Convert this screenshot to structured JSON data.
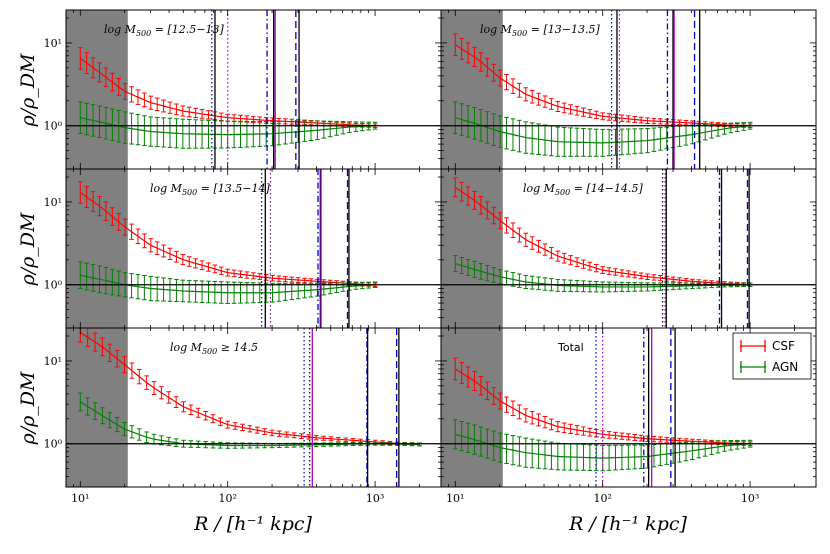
{
  "figure": {
    "ylabel_left": "ρ/ρ_DM",
    "xlabel": "R / [h⁻¹ kpc]"
  },
  "chart_data": {
    "type": "line",
    "x_scale": "log",
    "y_scale": "log",
    "xlim": [
      8,
      2800
    ],
    "ylim": [
      0.3,
      25
    ],
    "x_ticks": [
      {
        "value": 10,
        "label": "10¹"
      },
      {
        "value": 100,
        "label": "10²"
      },
      {
        "value": 1000,
        "label": "10³"
      }
    ],
    "y_ticks": [
      {
        "value": 1,
        "label": "10⁰"
      },
      {
        "value": 10,
        "label": "10¹"
      }
    ],
    "shaded_region": {
      "x_from": 8,
      "x_to": 21
    },
    "reference_line_y": 1,
    "colors": {
      "CSF": "#ff0000",
      "AGN": "#008000",
      "black": "#000000",
      "blue": "#0000cc",
      "purple": "#aa00cc"
    },
    "legend": {
      "position": "top-right",
      "panel": 5,
      "entries": [
        "CSF",
        "AGN"
      ]
    },
    "panels": [
      {
        "label": "log M_500 = [12.5−13]",
        "csf": {
          "x": [
            10,
            14,
            20,
            30,
            50,
            100,
            200,
            400,
            700,
            1000
          ],
          "y": [
            6.5,
            4.2,
            2.6,
            1.9,
            1.5,
            1.25,
            1.15,
            1.08,
            1.02,
            1.0
          ],
          "err": [
            1.35,
            1.3,
            1.25,
            1.2,
            1.15,
            1.1,
            1.08,
            1.06,
            1.05,
            1.05
          ]
        },
        "agn": {
          "x": [
            10,
            14,
            20,
            30,
            50,
            100,
            200,
            400,
            700,
            1000
          ],
          "y": [
            1.25,
            1.1,
            0.95,
            0.85,
            0.8,
            0.78,
            0.8,
            0.88,
            0.97,
            1.0
          ],
          "err": [
            1.55,
            1.55,
            1.55,
            1.5,
            1.5,
            1.45,
            1.4,
            1.3,
            1.15,
            1.1
          ]
        },
        "vlines": [
          {
            "x": 78,
            "color": "blue",
            "style": "dotted"
          },
          {
            "x": 82,
            "color": "black",
            "style": "solid"
          },
          {
            "x": 100,
            "color": "purple",
            "style": "dotted"
          },
          {
            "x": 185,
            "color": "blue",
            "style": "dashdot"
          },
          {
            "x": 205,
            "color": "black",
            "style": "solid"
          },
          {
            "x": 210,
            "color": "purple",
            "style": "solid"
          },
          {
            "x": 290,
            "color": "blue",
            "style": "dashed"
          },
          {
            "x": 305,
            "color": "black",
            "style": "solid"
          }
        ]
      },
      {
        "label": "log M_500 = [13−13.5]",
        "csf": {
          "x": [
            10,
            14,
            20,
            30,
            50,
            100,
            200,
            400,
            700,
            1000
          ],
          "y": [
            9.5,
            6.5,
            3.8,
            2.4,
            1.7,
            1.3,
            1.15,
            1.08,
            1.02,
            1.0
          ],
          "err": [
            1.35,
            1.3,
            1.25,
            1.2,
            1.15,
            1.1,
            1.08,
            1.06,
            1.05,
            1.05
          ]
        },
        "agn": {
          "x": [
            10,
            14,
            20,
            30,
            50,
            100,
            200,
            400,
            700,
            1000
          ],
          "y": [
            1.25,
            1.05,
            0.85,
            0.72,
            0.64,
            0.62,
            0.66,
            0.78,
            0.93,
            1.0
          ],
          "err": [
            1.55,
            1.55,
            1.55,
            1.55,
            1.5,
            1.45,
            1.4,
            1.3,
            1.15,
            1.1
          ]
        },
        "vlines": [
          {
            "x": 115,
            "color": "blue",
            "style": "dotted"
          },
          {
            "x": 125,
            "color": "black",
            "style": "solid"
          },
          {
            "x": 130,
            "color": "purple",
            "style": "dotted"
          },
          {
            "x": 275,
            "color": "blue",
            "style": "dashdot"
          },
          {
            "x": 300,
            "color": "black",
            "style": "solid"
          },
          {
            "x": 305,
            "color": "purple",
            "style": "solid"
          },
          {
            "x": 420,
            "color": "blue",
            "style": "dashed"
          },
          {
            "x": 455,
            "color": "black",
            "style": "solid"
          }
        ]
      },
      {
        "label": "log M_500 = [13.5−14]",
        "csf": {
          "x": [
            10,
            14,
            20,
            30,
            50,
            100,
            200,
            400,
            700,
            1000
          ],
          "y": [
            13,
            8.5,
            5.0,
            3.0,
            2.0,
            1.4,
            1.2,
            1.1,
            1.03,
            1.0
          ],
          "err": [
            1.35,
            1.3,
            1.25,
            1.2,
            1.15,
            1.1,
            1.08,
            1.06,
            1.05,
            1.05
          ]
        },
        "agn": {
          "x": [
            10,
            14,
            20,
            30,
            50,
            100,
            200,
            400,
            700,
            1000
          ],
          "y": [
            1.3,
            1.15,
            1.0,
            0.9,
            0.84,
            0.8,
            0.8,
            0.87,
            0.96,
            1.0
          ],
          "err": [
            1.45,
            1.45,
            1.4,
            1.4,
            1.35,
            1.35,
            1.3,
            1.2,
            1.1,
            1.08
          ]
        },
        "vlines": [
          {
            "x": 170,
            "color": "blue",
            "style": "dotted"
          },
          {
            "x": 180,
            "color": "black",
            "style": "solid"
          },
          {
            "x": 195,
            "color": "purple",
            "style": "dotted"
          },
          {
            "x": 410,
            "color": "blue",
            "style": "dashdot"
          },
          {
            "x": 425,
            "color": "black",
            "style": "solid"
          },
          {
            "x": 430,
            "color": "purple",
            "style": "solid"
          },
          {
            "x": 650,
            "color": "blue",
            "style": "dashed"
          },
          {
            "x": 665,
            "color": "black",
            "style": "solid"
          }
        ]
      },
      {
        "label": "log M_500 = [14−14.5]",
        "csf": {
          "x": [
            10,
            14,
            20,
            30,
            50,
            100,
            200,
            400,
            700,
            1000
          ],
          "y": [
            15,
            10,
            6.0,
            3.5,
            2.2,
            1.5,
            1.25,
            1.1,
            1.03,
            1.0
          ],
          "err": [
            1.3,
            1.28,
            1.25,
            1.2,
            1.15,
            1.1,
            1.08,
            1.06,
            1.05,
            1.05
          ]
        },
        "agn": {
          "x": [
            10,
            14,
            20,
            30,
            50,
            100,
            200,
            400,
            700,
            1000
          ],
          "y": [
            1.8,
            1.5,
            1.25,
            1.08,
            0.98,
            0.94,
            0.94,
            0.97,
            0.99,
            1.0
          ],
          "err": [
            1.25,
            1.25,
            1.22,
            1.2,
            1.18,
            1.15,
            1.12,
            1.08,
            1.05,
            1.05
          ]
        },
        "vlines": [
          {
            "x": 255,
            "color": "black",
            "style": "dotted"
          },
          {
            "x": 265,
            "color": "purple",
            "style": "dotted"
          },
          {
            "x": 270,
            "color": "black",
            "style": "solid"
          },
          {
            "x": 620,
            "color": "blue",
            "style": "dashdot"
          },
          {
            "x": 640,
            "color": "black",
            "style": "solid"
          },
          {
            "x": 960,
            "color": "blue",
            "style": "dashed"
          },
          {
            "x": 985,
            "color": "black",
            "style": "solid"
          }
        ]
      },
      {
        "label": "log M_500 ≥ 14.5",
        "csf": {
          "x": [
            10,
            14,
            20,
            30,
            50,
            100,
            200,
            400,
            700,
            1000,
            1500,
            2000
          ],
          "y": [
            22,
            15,
            9.0,
            5.0,
            2.8,
            1.7,
            1.35,
            1.18,
            1.1,
            1.05,
            1.0,
            0.98
          ],
          "err": [
            1.3,
            1.28,
            1.25,
            1.2,
            1.15,
            1.1,
            1.08,
            1.06,
            1.05,
            1.05,
            1.04,
            1.04
          ]
        },
        "agn": {
          "x": [
            10,
            14,
            20,
            30,
            50,
            100,
            200,
            400,
            700,
            1000,
            1500,
            2000
          ],
          "y": [
            3.2,
            2.2,
            1.5,
            1.15,
            1.0,
            0.95,
            0.95,
            0.97,
            0.99,
            1.0,
            0.99,
            0.98
          ],
          "err": [
            1.28,
            1.25,
            1.2,
            1.15,
            1.1,
            1.08,
            1.06,
            1.05,
            1.04,
            1.04,
            1.04,
            1.04
          ]
        },
        "vlines": [
          {
            "x": 330,
            "color": "blue",
            "style": "dotted"
          },
          {
            "x": 360,
            "color": "black",
            "style": "dotted"
          },
          {
            "x": 375,
            "color": "purple",
            "style": "solid"
          },
          {
            "x": 880,
            "color": "blue",
            "style": "dashdot"
          },
          {
            "x": 890,
            "color": "black",
            "style": "solid"
          },
          {
            "x": 1400,
            "color": "blue",
            "style": "dashed"
          },
          {
            "x": 1450,
            "color": "black",
            "style": "solid"
          }
        ]
      },
      {
        "label": "Total",
        "csf": {
          "x": [
            10,
            14,
            20,
            30,
            50,
            100,
            200,
            400,
            700,
            1000
          ],
          "y": [
            8.0,
            5.5,
            3.3,
            2.2,
            1.6,
            1.3,
            1.15,
            1.07,
            1.02,
            1.0
          ],
          "err": [
            1.35,
            1.3,
            1.25,
            1.2,
            1.15,
            1.1,
            1.08,
            1.06,
            1.05,
            1.05
          ]
        },
        "agn": {
          "x": [
            10,
            14,
            20,
            30,
            50,
            100,
            200,
            400,
            700,
            1000
          ],
          "y": [
            1.3,
            1.1,
            0.9,
            0.78,
            0.7,
            0.67,
            0.7,
            0.82,
            0.95,
            1.0
          ],
          "err": [
            1.5,
            1.5,
            1.5,
            1.5,
            1.45,
            1.42,
            1.38,
            1.28,
            1.15,
            1.1
          ]
        },
        "vlines": [
          {
            "x": 90,
            "color": "blue",
            "style": "dotted"
          },
          {
            "x": 100,
            "color": "purple",
            "style": "dotted"
          },
          {
            "x": 190,
            "color": "blue",
            "style": "dashdot"
          },
          {
            "x": 205,
            "color": "black",
            "style": "solid"
          },
          {
            "x": 215,
            "color": "purple",
            "style": "solid"
          },
          {
            "x": 290,
            "color": "blue",
            "style": "dashed"
          },
          {
            "x": 310,
            "color": "black",
            "style": "solid"
          }
        ]
      }
    ]
  }
}
